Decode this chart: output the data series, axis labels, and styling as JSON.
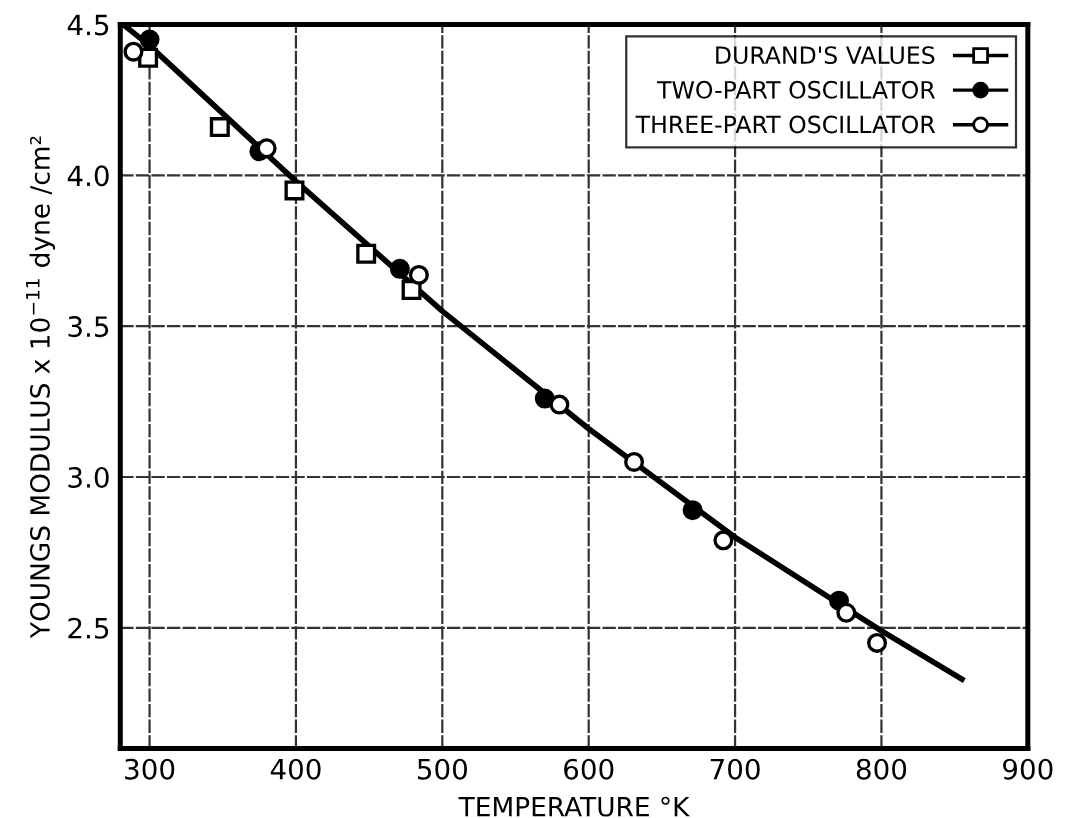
{
  "chart_data": {
    "type": "scatter",
    "xlabel": "TEMPERATURE °K",
    "ylabel": "YOUNGS MODULUS x 10$^{−11}$ dyne /cm²",
    "series": [
      {
        "name": "DURAND'S VALUES",
        "color": "#000000",
        "marker": "square",
        "x": [
          299,
          348,
          399,
          448,
          479
        ],
        "values": [
          4.39,
          4.16,
          3.95,
          3.74,
          3.62
        ]
      },
      {
        "name": "TWO-PART OSCILLATOR",
        "color": "#000000",
        "marker": "circle",
        "x": [
          300,
          375,
          471,
          570,
          671,
          771
        ],
        "values": [
          4.45,
          4.08,
          3.69,
          3.26,
          2.89,
          2.59
        ]
      },
      {
        "name": "THREE-PART OSCILLATOR",
        "color": "#000000",
        "marker": "circle",
        "x": [
          289,
          380,
          484,
          580,
          631,
          692,
          776,
          797
        ],
        "values": [
          4.41,
          4.09,
          3.67,
          3.24,
          3.05,
          2.79,
          2.55,
          2.45
        ]
      },
      {
        "type": "line",
        "color": "#000000",
        "marker": "none",
        "x": [
          282,
          300,
          400,
          500,
          600,
          700,
          800,
          855
        ],
        "values": [
          4.5,
          4.43,
          3.98,
          3.55,
          3.16,
          2.8,
          2.49,
          2.33
        ]
      }
    ],
    "xlim": [
      280,
      900
    ],
    "xticks": [
      300,
      400,
      500,
      600,
      700,
      800,
      900
    ],
    "ylim": [
      2.1,
      4.5
    ],
    "yticks": [
      2.5,
      {
        "value": 3,
        "label": "3.0"
      },
      3.5,
      {
        "value": 4,
        "label": "4.0"
      },
      4.5
    ],
    "grid": true,
    "legend": "top right"
  }
}
